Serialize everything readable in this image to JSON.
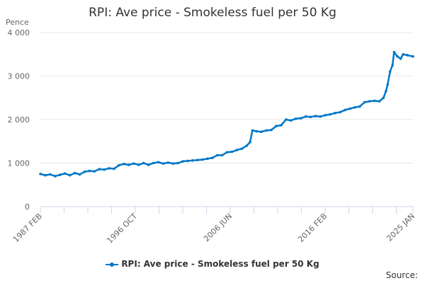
{
  "chart_data": {
    "type": "line",
    "title": "RPI: Ave price - Smokeless fuel per 50 Kg",
    "ylabel": "Pence",
    "ylim": [
      0,
      4000
    ],
    "yticks": [
      "0",
      "1 000",
      "2 000",
      "3 000",
      "4 000"
    ],
    "xlim": [
      "1987-02",
      "2025-01"
    ],
    "xtick_labels": [
      {
        "date": "1987-02",
        "label": "1987 FEB"
      },
      {
        "date": "1996-10",
        "label": "1996 OCT"
      },
      {
        "date": "2006-06",
        "label": "2006 JUN"
      },
      {
        "date": "2016-02",
        "label": "2016 FEB"
      },
      {
        "date": "2025-01",
        "label": "2025 JAN"
      }
    ],
    "grid": true,
    "legend_placement": "bottom",
    "color": "#0077c8",
    "series": [
      {
        "name": "RPI: Ave price - Smokeless fuel per 50 Kg",
        "points": [
          [
            "1987-02",
            750
          ],
          [
            "1987-08",
            720
          ],
          [
            "1988-02",
            740
          ],
          [
            "1988-08",
            700
          ],
          [
            "1989-02",
            730
          ],
          [
            "1989-08",
            760
          ],
          [
            "1990-02",
            720
          ],
          [
            "1990-08",
            770
          ],
          [
            "1991-02",
            740
          ],
          [
            "1991-08",
            800
          ],
          [
            "1992-02",
            820
          ],
          [
            "1992-08",
            810
          ],
          [
            "1993-02",
            860
          ],
          [
            "1993-08",
            850
          ],
          [
            "1994-02",
            880
          ],
          [
            "1994-08",
            870
          ],
          [
            "1995-02",
            950
          ],
          [
            "1995-08",
            980
          ],
          [
            "1996-02",
            960
          ],
          [
            "1996-08",
            990
          ],
          [
            "1997-02",
            960
          ],
          [
            "1997-08",
            1000
          ],
          [
            "1998-02",
            960
          ],
          [
            "1998-08",
            1000
          ],
          [
            "1999-02",
            1020
          ],
          [
            "1999-08",
            990
          ],
          [
            "2000-02",
            1010
          ],
          [
            "2000-08",
            990
          ],
          [
            "2001-02",
            1000
          ],
          [
            "2001-08",
            1040
          ],
          [
            "2002-02",
            1050
          ],
          [
            "2002-08",
            1060
          ],
          [
            "2003-02",
            1070
          ],
          [
            "2003-08",
            1080
          ],
          [
            "2004-02",
            1100
          ],
          [
            "2004-08",
            1120
          ],
          [
            "2005-02",
            1180
          ],
          [
            "2005-08",
            1180
          ],
          [
            "2006-02",
            1250
          ],
          [
            "2006-08",
            1260
          ],
          [
            "2007-02",
            1300
          ],
          [
            "2007-08",
            1330
          ],
          [
            "2008-02",
            1400
          ],
          [
            "2008-06",
            1480
          ],
          [
            "2008-09",
            1750
          ],
          [
            "2009-02",
            1730
          ],
          [
            "2009-08",
            1720
          ],
          [
            "2010-02",
            1750
          ],
          [
            "2010-08",
            1760
          ],
          [
            "2011-02",
            1850
          ],
          [
            "2011-08",
            1870
          ],
          [
            "2012-02",
            2000
          ],
          [
            "2012-08",
            1980
          ],
          [
            "2013-02",
            2020
          ],
          [
            "2013-08",
            2030
          ],
          [
            "2014-02",
            2070
          ],
          [
            "2014-08",
            2060
          ],
          [
            "2015-02",
            2080
          ],
          [
            "2015-08",
            2070
          ],
          [
            "2016-02",
            2100
          ],
          [
            "2016-08",
            2120
          ],
          [
            "2017-02",
            2150
          ],
          [
            "2017-08",
            2170
          ],
          [
            "2018-02",
            2220
          ],
          [
            "2018-08",
            2250
          ],
          [
            "2019-02",
            2280
          ],
          [
            "2019-08",
            2300
          ],
          [
            "2020-02",
            2400
          ],
          [
            "2020-08",
            2420
          ],
          [
            "2021-02",
            2430
          ],
          [
            "2021-08",
            2420
          ],
          [
            "2022-01",
            2500
          ],
          [
            "2022-04",
            2650
          ],
          [
            "2022-06",
            2800
          ],
          [
            "2022-09",
            3100
          ],
          [
            "2022-12",
            3250
          ],
          [
            "2023-02",
            3550
          ],
          [
            "2023-06",
            3450
          ],
          [
            "2023-10",
            3400
          ],
          [
            "2024-01",
            3500
          ],
          [
            "2024-06",
            3480
          ],
          [
            "2025-01",
            3450
          ]
        ]
      }
    ]
  },
  "legend": {
    "label": "RPI: Ave price - Smokeless fuel per 50 Kg"
  },
  "source_label": "Source:"
}
